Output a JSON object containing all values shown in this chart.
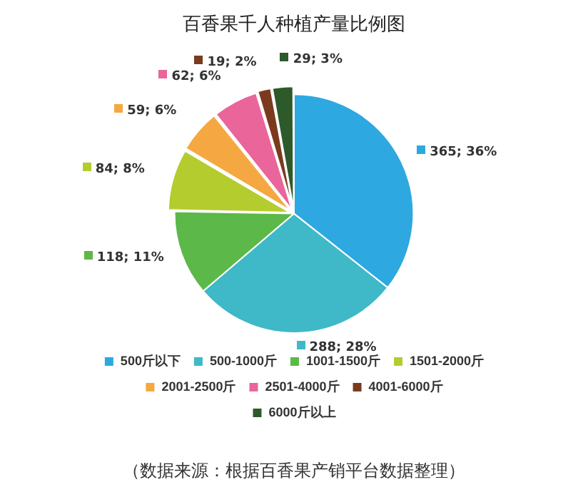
{
  "chart_data": {
    "type": "pie",
    "title": "百香果千人种植产量比例图",
    "categories": [
      "500斤以下",
      "500-1000斤",
      "1001-1500斤",
      "1501-2000斤",
      "2001-2500斤",
      "2501-4000斤",
      "4001-6000斤",
      "6000斤以上"
    ],
    "values": [
      365,
      288,
      118,
      84,
      59,
      62,
      19,
      29
    ],
    "value_labels": [
      "365; 36%",
      "288; 28%",
      "118; 11%",
      "84; 8%",
      "59; 6%",
      "62; 6%",
      "19; 2%",
      "29; 3%"
    ],
    "colors": [
      "#2ea8e0",
      "#3fb8c8",
      "#5cb848",
      "#b5cc2e",
      "#f5a841",
      "#e9659a",
      "#7b3a1e",
      "#2d5a2a"
    ],
    "legend": "bottom",
    "annotations": [
      "（数据来源：根据百香果产销平台数据整理）"
    ]
  }
}
